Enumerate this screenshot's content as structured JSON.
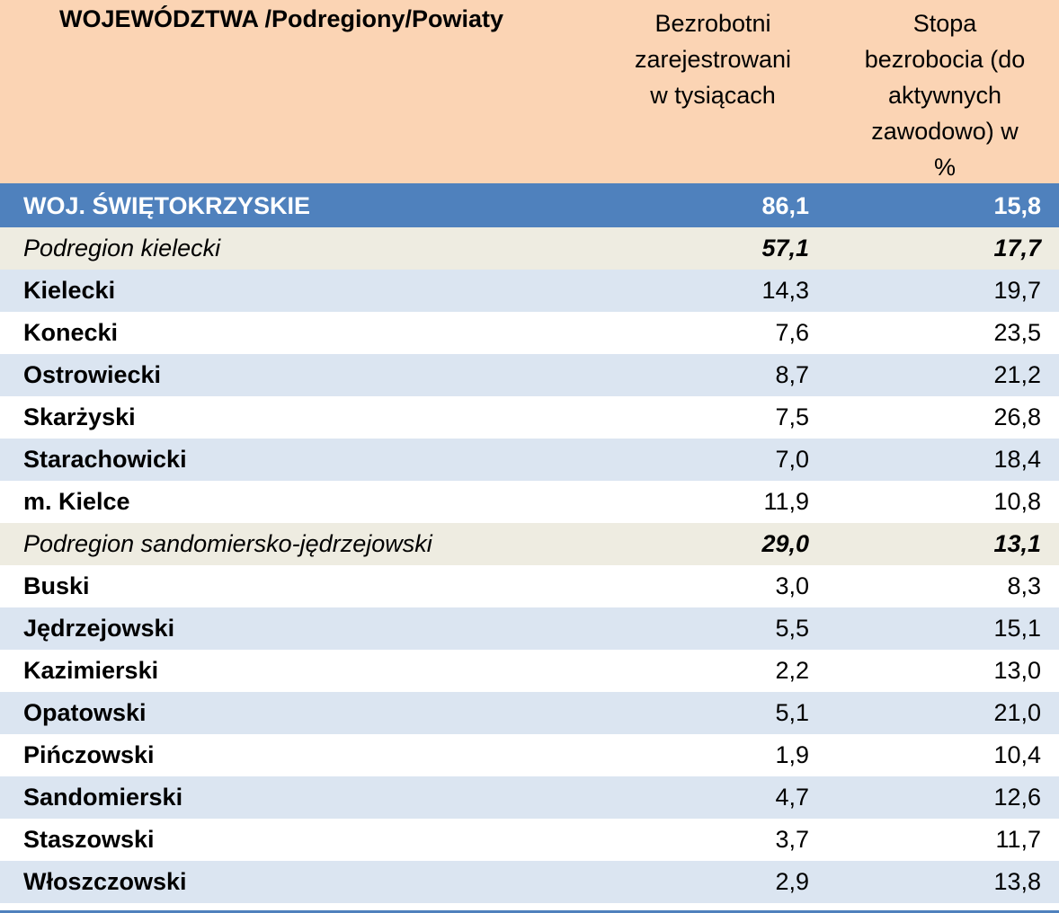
{
  "header": {
    "col1": "WOJEWÓDZTWA /Podregiony/Powiaty",
    "col2_lines": [
      "Bezrobotni",
      "zarejestrowani",
      "w tysiącach"
    ],
    "col3_lines": [
      "Stopa",
      "bezrobocia  (do",
      "aktywnych",
      "zawodowo) w",
      "%"
    ]
  },
  "rows": [
    {
      "name": "WOJ. ŚWIĘTOKRZYSKIE",
      "bezrobotni": "86,1",
      "stopa": "15,8",
      "type": "total"
    },
    {
      "name": "Podregion kielecki",
      "bezrobotni": "57,1",
      "stopa": "17,7",
      "type": "subregion"
    },
    {
      "name": "Kielecki",
      "bezrobotni": "14,3",
      "stopa": "19,7",
      "type": "county-band"
    },
    {
      "name": "Konecki",
      "bezrobotni": "7,6",
      "stopa": "23,5",
      "type": "county-plain"
    },
    {
      "name": "Ostrowiecki",
      "bezrobotni": "8,7",
      "stopa": "21,2",
      "type": "county-band"
    },
    {
      "name": "Skarżyski",
      "bezrobotni": "7,5",
      "stopa": "26,8",
      "type": "county-plain"
    },
    {
      "name": "Starachowicki",
      "bezrobotni": "7,0",
      "stopa": "18,4",
      "type": "county-band"
    },
    {
      "name": "m. Kielce",
      "bezrobotni": "11,9",
      "stopa": "10,8",
      "type": "county-plain"
    },
    {
      "name": "Podregion sandomiersko-jędrzejowski",
      "bezrobotni": "29,0",
      "stopa": "13,1",
      "type": "subregion"
    },
    {
      "name": "Buski",
      "bezrobotni": "3,0",
      "stopa": "8,3",
      "type": "county-plain"
    },
    {
      "name": "Jędrzejowski",
      "bezrobotni": "5,5",
      "stopa": "15,1",
      "type": "county-band"
    },
    {
      "name": "Kazimierski",
      "bezrobotni": "2,2",
      "stopa": "13,0",
      "type": "county-plain"
    },
    {
      "name": "Opatowski",
      "bezrobotni": "5,1",
      "stopa": "21,0",
      "type": "county-band"
    },
    {
      "name": "Pińczowski",
      "bezrobotni": "1,9",
      "stopa": "10,4",
      "type": "county-plain"
    },
    {
      "name": "Sandomierski",
      "bezrobotni": "4,7",
      "stopa": "12,6",
      "type": "county-band"
    },
    {
      "name": "Staszowski",
      "bezrobotni": "3,7",
      "stopa": "11,7",
      "type": "county-plain"
    },
    {
      "name": "Włoszczowski",
      "bezrobotni": "2,9",
      "stopa": "13,8",
      "type": "county-band"
    }
  ]
}
